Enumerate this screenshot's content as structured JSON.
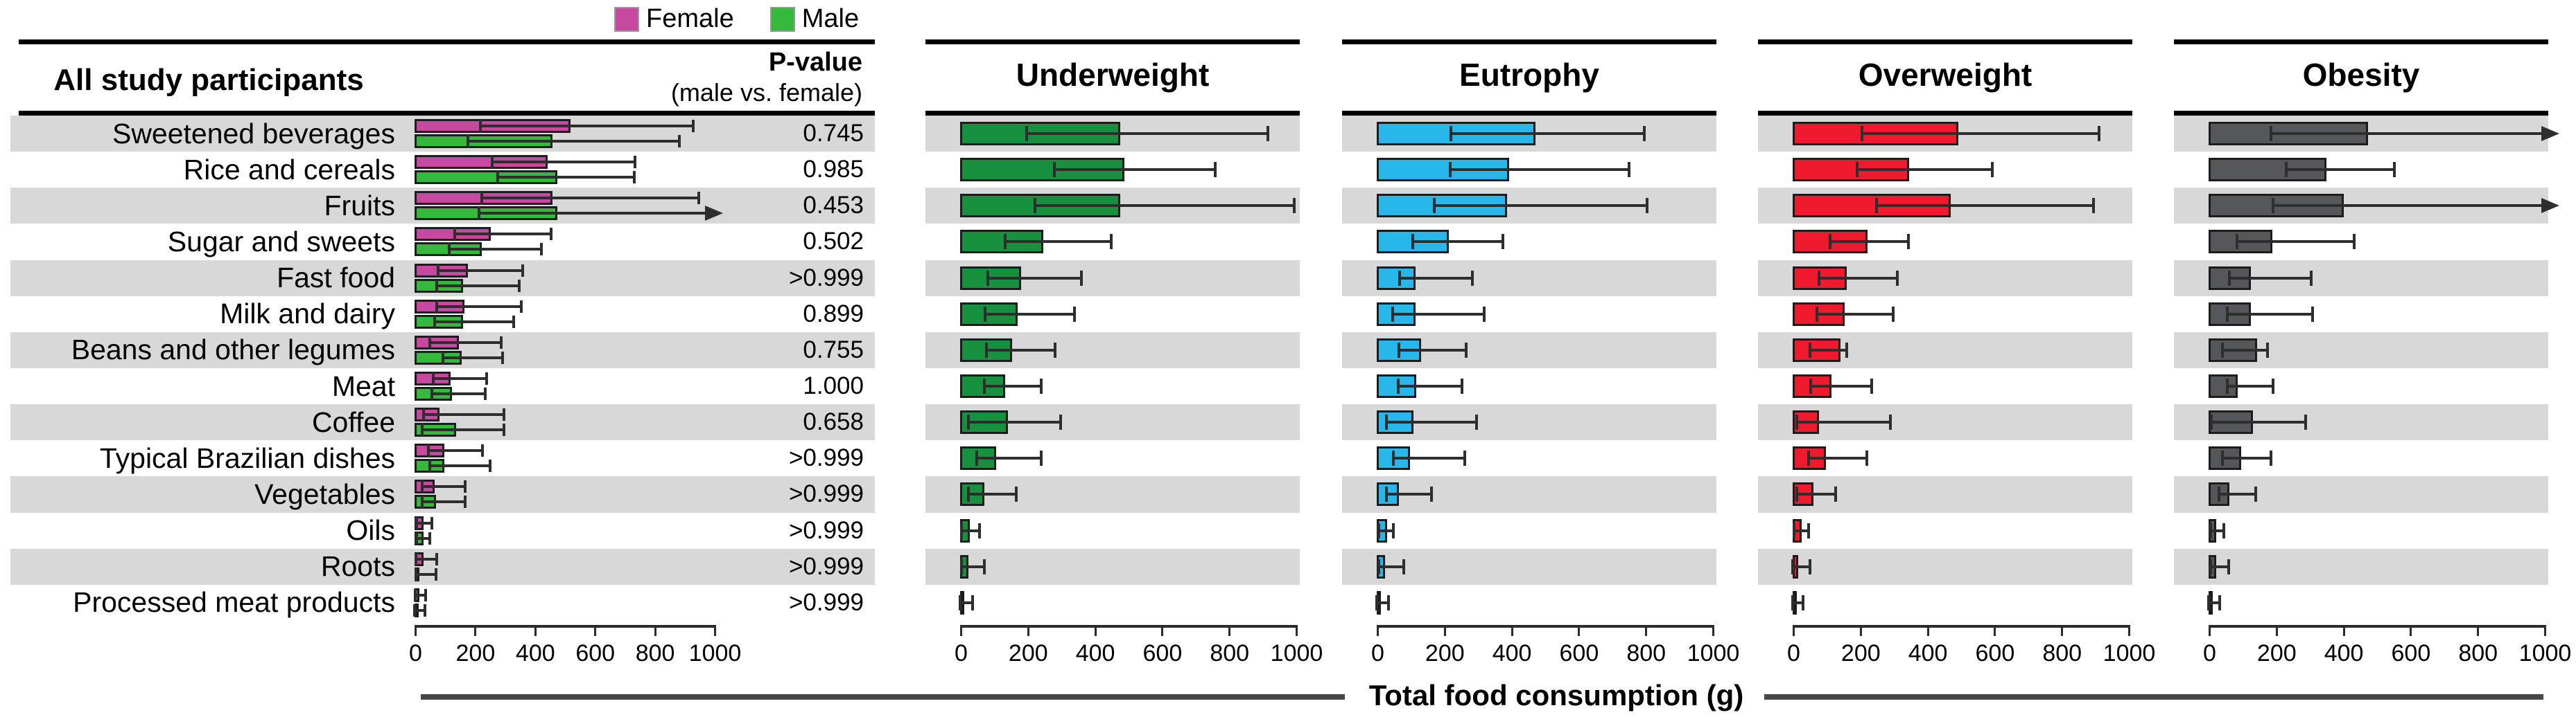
{
  "figure": {
    "legend": [
      {
        "label": "Female",
        "color": "#C6489F"
      },
      {
        "label": "Male",
        "color": "#34B93C"
      }
    ],
    "row_shading": "#D8D8D8",
    "error_bar_color": "#2e2e2e"
  },
  "chart_data": {
    "type": "bar",
    "orientation": "horizontal",
    "xlabel": "Total food consumption (g)",
    "grid": false,
    "legend_position": "top-left",
    "axis": {
      "min": 0,
      "max": 1000,
      "ticks": [
        0,
        200,
        400,
        600,
        800,
        1000
      ]
    },
    "categories": [
      "Sweetened beverages",
      "Rice and cereals",
      "Fruits",
      "Sugar and sweets",
      "Fast food",
      "Milk and dairy",
      "Beans and other legumes",
      "Meat",
      "Coffee",
      "Typical Brazilian dishes",
      "Vegetables",
      "Oils",
      "Roots",
      "Processed meat products"
    ],
    "pvalues": {
      "header": "P-value",
      "subheader": "(male vs. female)",
      "values": [
        "0.745",
        "0.985",
        "0.453",
        "0.502",
        ">0.999",
        "0.899",
        "0.755",
        "1.000",
        "0.658",
        ">0.999",
        ">0.999",
        ">0.999",
        ">0.999",
        ">0.999"
      ]
    },
    "panels": [
      {
        "id": "all",
        "title": "All study participants",
        "series": [
          "female",
          "male"
        ],
        "show_pvalues": true
      },
      {
        "id": "underweight",
        "title": "Underweight",
        "series": [
          "underweight"
        ]
      },
      {
        "id": "eutrophy",
        "title": "Eutrophy",
        "series": [
          "eutrophy"
        ]
      },
      {
        "id": "overweight",
        "title": "Overweight",
        "series": [
          "overweight"
        ]
      },
      {
        "id": "obesity",
        "title": "Obesity",
        "series": [
          "obesity"
        ]
      }
    ],
    "series": {
      "female": {
        "label": "Female",
        "color": "#C6489F",
        "mean": [
          520,
          445,
          460,
          255,
          178,
          167,
          147,
          120,
          84,
          100,
          67,
          29,
          29,
          17
        ],
        "err_lo": [
          220,
          260,
          225,
          135,
          78,
          73,
          52,
          63,
          29,
          47,
          25,
          8,
          5,
          2
        ],
        "err_hi": [
          930,
          735,
          950,
          455,
          360,
          356,
          290,
          240,
          298,
          227,
          168,
          59,
          75,
          38
        ],
        "arrow_rows": []
      },
      "male": {
        "label": "Male",
        "color": "#34B93C",
        "mean": [
          460,
          476,
          476,
          225,
          162,
          162,
          157,
          126,
          140,
          100,
          71,
          29,
          17,
          8
        ],
        "err_lo": [
          178,
          277,
          215,
          115,
          73,
          68,
          94,
          58,
          25,
          50,
          25,
          8,
          5,
          1
        ],
        "err_hi": [
          885,
          733,
          980,
          424,
          350,
          330,
          293,
          236,
          298,
          252,
          168,
          50,
          71,
          34
        ],
        "arrow_rows": [
          2
        ]
      },
      "underweight": {
        "label": "Underweight",
        "color": "#17913F",
        "mean": [
          478,
          489,
          478,
          248,
          181,
          171,
          154,
          134,
          142,
          108,
          72,
          28,
          25,
          12
        ],
        "err_lo": [
          199,
          280,
          224,
          135,
          82,
          75,
          79,
          72,
          25,
          50,
          25,
          5,
          5,
          1
        ],
        "err_hi": [
          917,
          761,
          995,
          450,
          362,
          340,
          284,
          242,
          300,
          242,
          167,
          58,
          72,
          38
        ],
        "arrow_rows": []
      },
      "eutrophy": {
        "label": "Eutrophy",
        "color": "#27B7EA",
        "mean": [
          473,
          395,
          388,
          214,
          115,
          115,
          133,
          117,
          110,
          99,
          67,
          32,
          25,
          11
        ],
        "err_lo": [
          222,
          218,
          172,
          108,
          69,
          48,
          66,
          64,
          28,
          50,
          28,
          7,
          7,
          1
        ],
        "err_hi": [
          798,
          752,
          805,
          377,
          285,
          321,
          267,
          255,
          297,
          262,
          163,
          50,
          81,
          35
        ],
        "arrow_rows": []
      },
      "overweight": {
        "label": "Overweight",
        "color": "#EF1A2D",
        "mean": [
          493,
          348,
          472,
          224,
          161,
          154,
          143,
          115,
          79,
          100,
          62,
          26,
          16,
          8
        ],
        "err_lo": [
          207,
          192,
          249,
          111,
          79,
          72,
          51,
          54,
          12,
          47,
          12,
          5,
          1,
          1
        ],
        "err_hi": [
          914,
          596,
          897,
          345,
          313,
          299,
          161,
          235,
          292,
          221,
          129,
          47,
          51,
          30
        ],
        "arrow_rows": []
      },
      "obesity": {
        "label": "Obesity",
        "color": "#56575A",
        "mean": [
          476,
          352,
          402,
          190,
          126,
          126,
          144,
          87,
          133,
          98,
          62,
          23,
          23,
          4
        ],
        "err_lo": [
          186,
          232,
          193,
          84,
          62,
          55,
          41,
          55,
          9,
          41,
          30,
          6,
          6,
          1
        ],
        "err_hi": [
          1000,
          554,
          1000,
          434,
          306,
          310,
          175,
          193,
          289,
          186,
          140,
          45,
          59,
          34
        ],
        "arrow_rows": [
          0,
          2
        ]
      }
    }
  }
}
